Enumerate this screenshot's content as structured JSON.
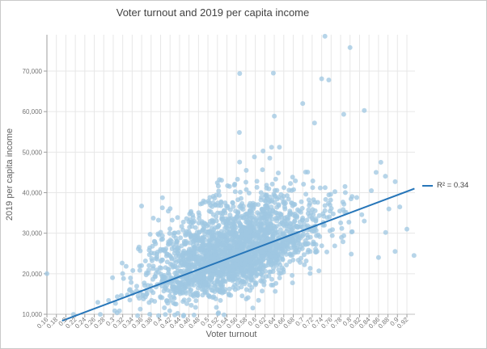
{
  "chart_data": {
    "type": "scatter",
    "title": "Voter turnout and 2019 per capita income",
    "xlabel": "Voter turnout",
    "ylabel": "2019 per capita income",
    "xlim": [
      0.16,
      0.92
    ],
    "ylim": [
      10000,
      79000
    ],
    "grid": true,
    "x_ticks": [
      0.16,
      0.18,
      0.2,
      0.22,
      0.24,
      0.26,
      0.28,
      0.3,
      0.32,
      0.34,
      0.36,
      0.38,
      0.4,
      0.42,
      0.44,
      0.46,
      0.48,
      0.5,
      0.52,
      0.54,
      0.56,
      0.58,
      0.6,
      0.62,
      0.64,
      0.66,
      0.68,
      0.7,
      0.72,
      0.74,
      0.76,
      0.78,
      0.8,
      0.82,
      0.84,
      0.86,
      0.88,
      0.9,
      0.92
    ],
    "x_tick_labels": [
      "0.16",
      "0.18",
      "0.2",
      "0.22",
      "0.24",
      "0.26",
      "0.28",
      "0.3",
      "0.32",
      "0.34",
      "0.36",
      "0.38",
      "0.4",
      "0.42",
      "0.44",
      "0.46",
      "0.48",
      "0.5",
      "0.52",
      "0.54",
      "0.56",
      "0.58",
      "0.6",
      "0.62",
      "0.64",
      "0.66",
      "0.68",
      "0.7",
      "0.72",
      "0.74",
      "0.76",
      "0.78",
      "0.8",
      "0.82",
      "0.84",
      "0.86",
      "0.88",
      "0.9",
      "0.92"
    ],
    "y_ticks": [
      10000,
      20000,
      30000,
      40000,
      50000,
      60000,
      70000
    ],
    "y_tick_labels": [
      "10,000",
      "20,000",
      "30,000",
      "40,000",
      "50,000",
      "60,000",
      "70,000"
    ],
    "legend": {
      "label": "R² = 0.34",
      "position": "right"
    },
    "trendline": {
      "r_squared": 0.34,
      "x1": 0.192,
      "y1": 8400,
      "x2": 0.936,
      "y2": 41000,
      "color": "#2776b9",
      "width": 2
    },
    "marker": {
      "color": "#9fc7e2",
      "opacity": 0.75,
      "radius": 3
    },
    "outlier_points": [
      [
        0.16,
        20000
      ],
      [
        0.747,
        78600
      ],
      [
        0.8,
        75800
      ],
      [
        0.567,
        69400
      ],
      [
        0.638,
        69500
      ],
      [
        0.74,
        68100
      ],
      [
        0.755,
        67800
      ],
      [
        0.83,
        60300
      ],
      [
        0.64,
        58900
      ],
      [
        0.7,
        62000
      ],
      [
        0.725,
        57200
      ],
      [
        0.845,
        40500
      ],
      [
        0.855,
        45000
      ],
      [
        0.865,
        47500
      ],
      [
        0.83,
        33000
      ],
      [
        0.86,
        24000
      ],
      [
        0.875,
        30200
      ],
      [
        0.882,
        36000
      ],
      [
        0.895,
        25500
      ],
      [
        0.905,
        36500
      ],
      [
        0.92,
        31000
      ],
      [
        0.935,
        24500
      ],
      [
        0.335,
        13500
      ],
      [
        0.377,
        10000
      ]
    ],
    "point_cloud": {
      "n": 2400,
      "seed": 20190,
      "x_mean": 0.555,
      "x_sd": 0.09,
      "x_min": 0.16,
      "x_max": 0.935,
      "base_intercept": 6000,
      "base_slope": 34000,
      "neg_sd": 4300,
      "pos_sd": 6300,
      "tail_prob": 0.06,
      "tail_scale": 30000,
      "y_min": 9400,
      "y_max": 77000
    },
    "colors": {
      "background": "#ffffff",
      "border": "#c9c9c9",
      "gridline": "#e7e7e7",
      "baseline": "#c2c2c2",
      "axis_line": "#9e9e9e",
      "tick_label": "#757575",
      "axis_title": "#616161",
      "title": "#424242",
      "legend_label": "#424242"
    }
  }
}
